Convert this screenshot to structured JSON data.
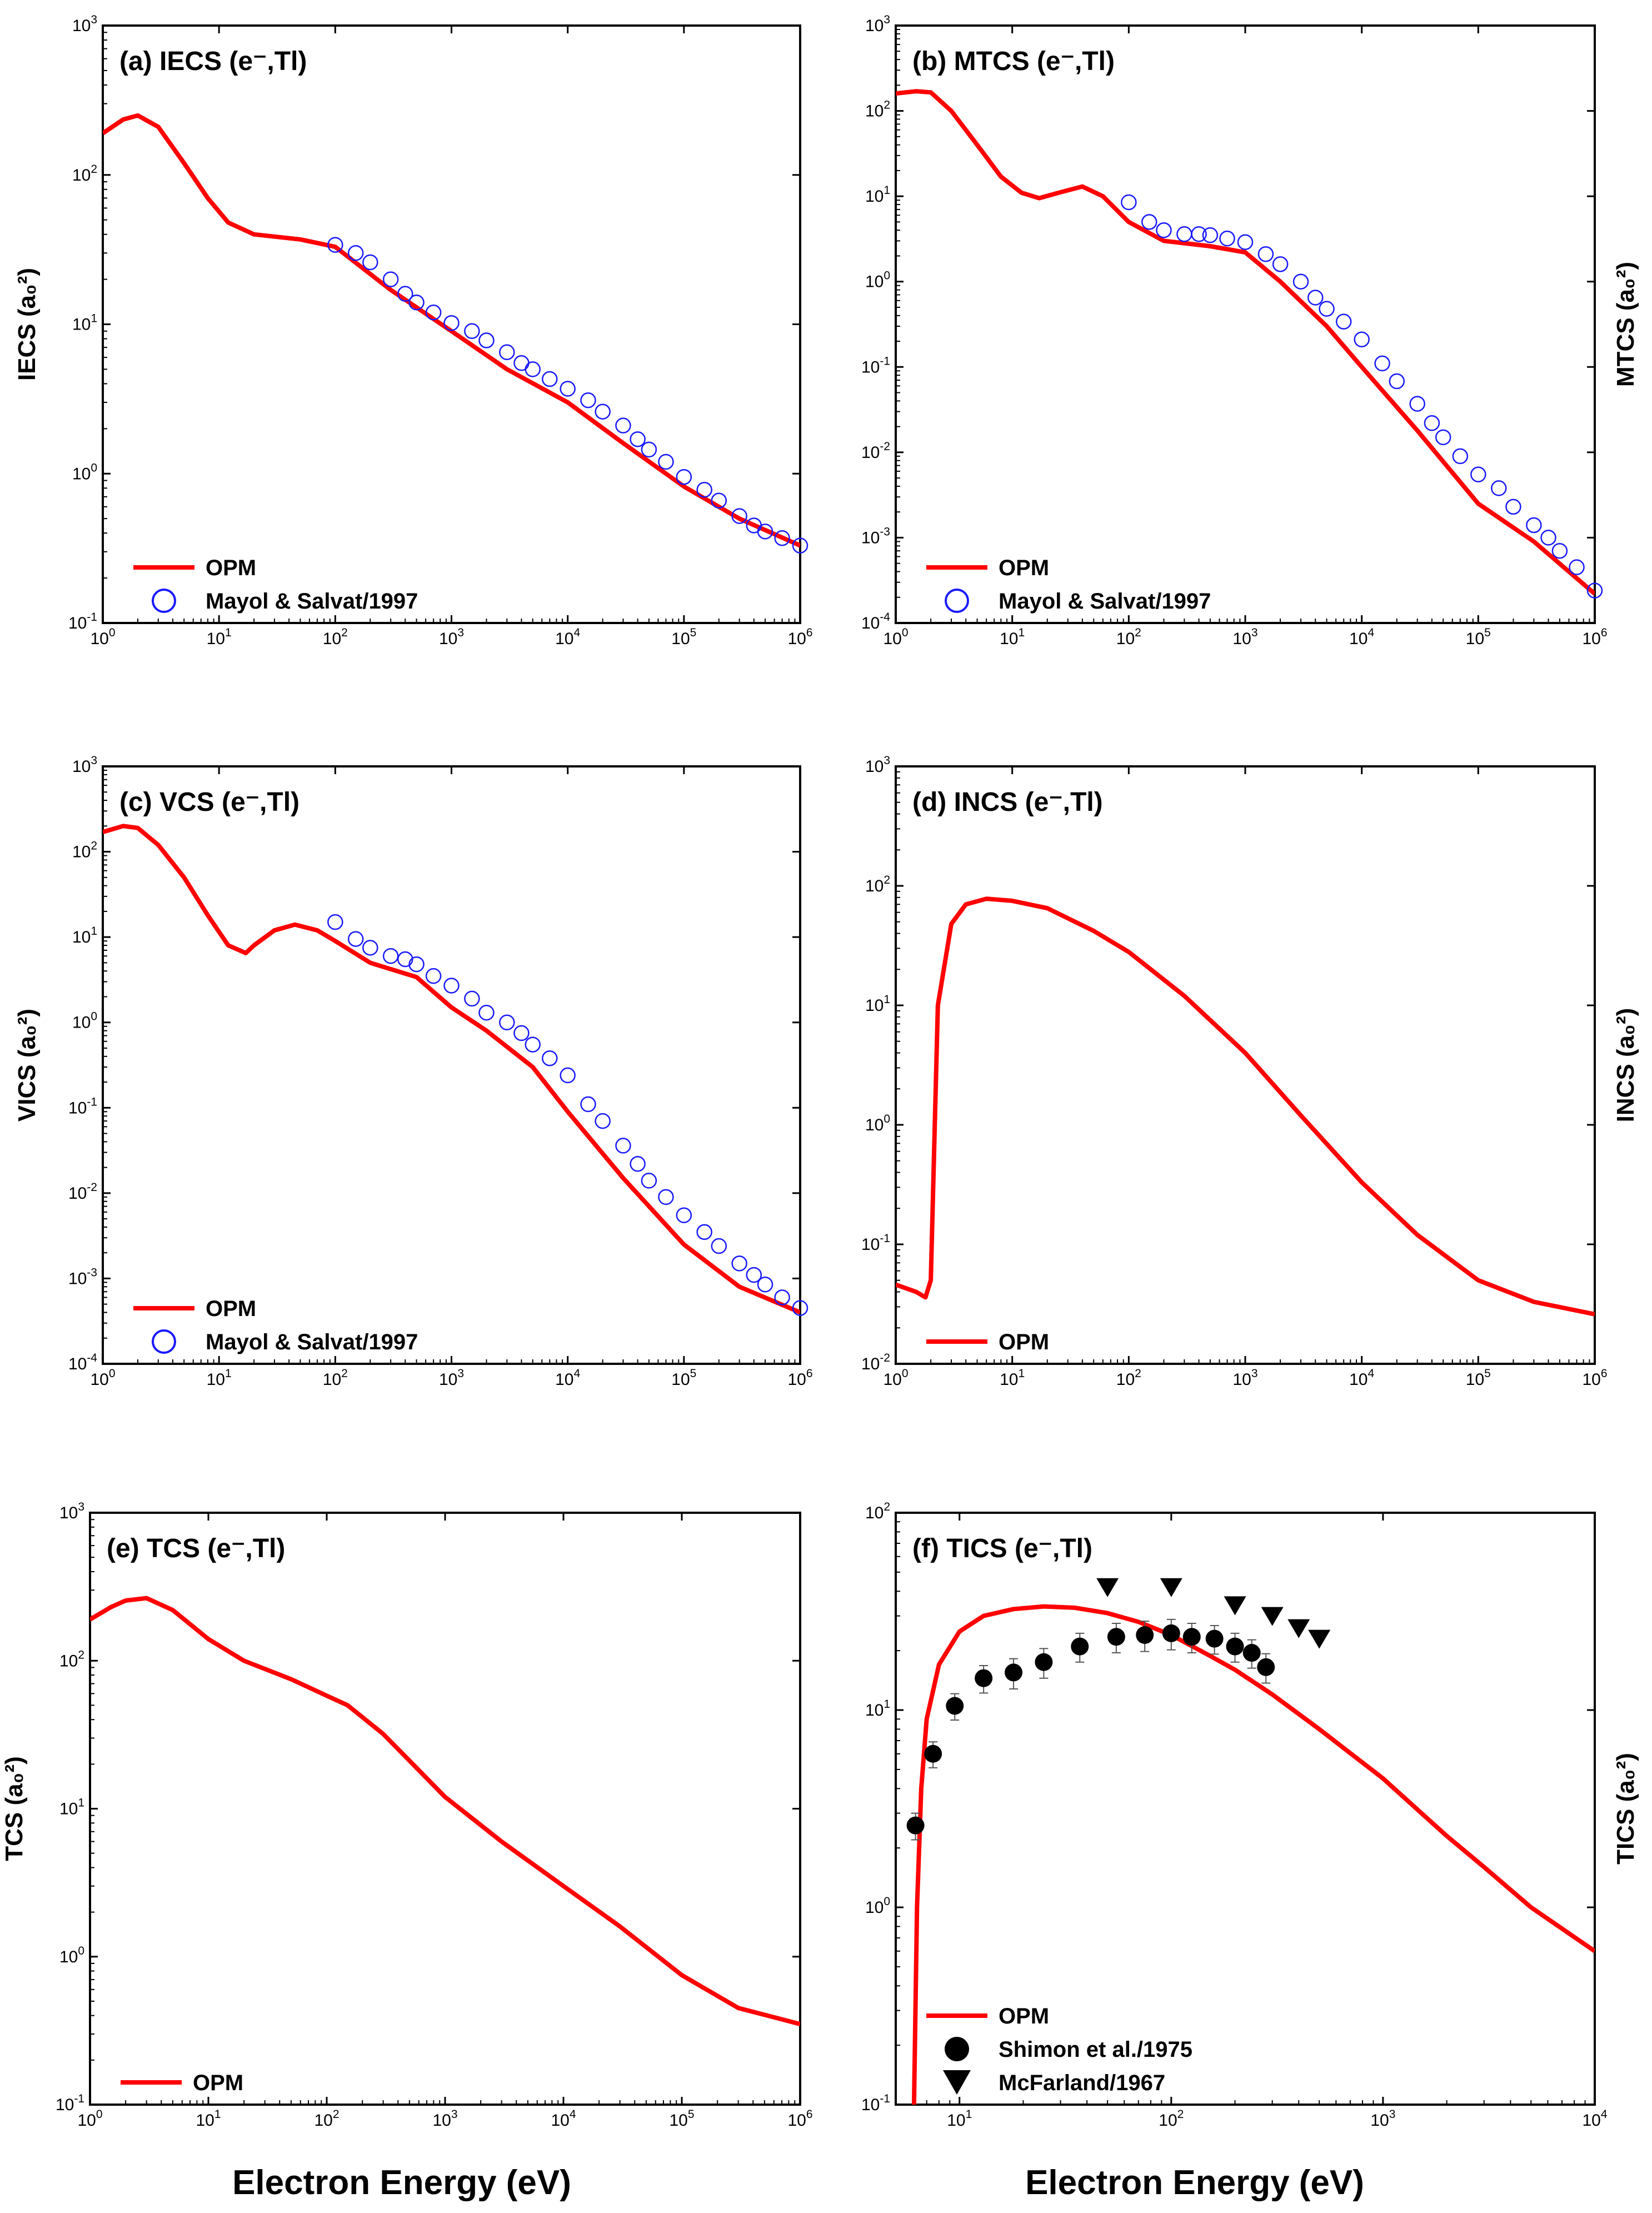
{
  "figure": {
    "x_axis_label": "Electron Energy (eV)"
  },
  "colors": {
    "opm": "#ff0000",
    "mayol": "#1a1aff",
    "experiment": "#000000"
  },
  "chart_data": [
    {
      "id": "a",
      "type": "line",
      "title": "(a) IECS (e⁻,Tl)",
      "ylabel": "IECS (a₀²)",
      "ylabel_side": "left",
      "xscale": "log",
      "yscale": "log",
      "xlim": [
        1,
        1000000
      ],
      "ylim": [
        0.1,
        1000
      ],
      "legend_position": "bottom-left",
      "series": [
        {
          "name": "OPM",
          "kind": "line",
          "color": "#ff0000",
          "x": [
            1,
            1.5,
            2,
            3,
            5,
            8,
            12,
            20,
            50,
            100,
            300,
            1000,
            3000,
            10000,
            30000,
            100000,
            300000,
            1000000
          ],
          "y": [
            190,
            235,
            250,
            210,
            120,
            70,
            48,
            40,
            37,
            33,
            17,
            9,
            5,
            3,
            1.6,
            0.82,
            0.5,
            0.33
          ]
        },
        {
          "name": "Mayol & Salvat/1997",
          "kind": "open-circle",
          "color": "#1a1aff",
          "x": [
            100,
            150,
            200,
            300,
            400,
            500,
            700,
            1000,
            1500,
            2000,
            3000,
            4000,
            5000,
            7000,
            10000,
            15000,
            20000,
            30000,
            40000,
            50000,
            70000,
            100000,
            150000,
            200000,
            300000,
            400000,
            500000,
            700000,
            1000000
          ],
          "y": [
            34,
            30,
            26,
            20,
            16,
            14,
            12,
            10.2,
            9,
            7.8,
            6.5,
            5.5,
            5,
            4.3,
            3.7,
            3.1,
            2.6,
            2.1,
            1.7,
            1.45,
            1.2,
            0.95,
            0.78,
            0.66,
            0.52,
            0.45,
            0.41,
            0.37,
            0.33
          ]
        }
      ]
    },
    {
      "id": "b",
      "type": "line",
      "title": "(b) MTCS (e⁻,Tl)",
      "ylabel": "MTCS (a₀²)",
      "ylabel_side": "right",
      "xscale": "log",
      "yscale": "log",
      "xlim": [
        1,
        1000000
      ],
      "ylim": [
        0.0001,
        1000
      ],
      "legend_position": "bottom-left",
      "series": [
        {
          "name": "OPM",
          "kind": "line",
          "color": "#ff0000",
          "x": [
            1,
            1.5,
            2,
            3,
            5,
            8,
            12,
            17,
            25,
            40,
            60,
            100,
            200,
            500,
            1000,
            2000,
            5000,
            10000,
            30000,
            100000,
            300000,
            1000000
          ],
          "y": [
            160,
            170,
            165,
            100,
            40,
            17,
            11,
            9.5,
            11,
            13,
            10,
            5,
            3,
            2.6,
            2.2,
            1,
            0.3,
            0.1,
            0.018,
            0.0025,
            0.0009,
            0.00022
          ]
        },
        {
          "name": "Mayol & Salvat/1997",
          "kind": "open-circle",
          "color": "#1a1aff",
          "x": [
            100,
            150,
            200,
            300,
            400,
            500,
            700,
            1000,
            1500,
            2000,
            3000,
            4000,
            5000,
            7000,
            10000,
            15000,
            20000,
            30000,
            40000,
            50000,
            70000,
            100000,
            150000,
            200000,
            300000,
            400000,
            500000,
            700000,
            1000000
          ],
          "y": [
            8.5,
            5,
            4,
            3.6,
            3.6,
            3.5,
            3.2,
            2.9,
            2.1,
            1.6,
            1,
            0.65,
            0.48,
            0.34,
            0.21,
            0.11,
            0.068,
            0.037,
            0.022,
            0.015,
            0.009,
            0.0055,
            0.0038,
            0.0023,
            0.0014,
            0.001,
            0.0007,
            0.00045,
            0.00024
          ]
        }
      ]
    },
    {
      "id": "c",
      "type": "line",
      "title": "(c) VCS (e⁻,Tl)",
      "ylabel": "VICS (a₀²)",
      "ylabel_side": "left",
      "xscale": "log",
      "yscale": "log",
      "xlim": [
        1,
        1000000
      ],
      "ylim": [
        0.0001,
        1000
      ],
      "legend_position": "bottom-left",
      "series": [
        {
          "name": "OPM",
          "kind": "line",
          "color": "#ff0000",
          "x": [
            1,
            1.5,
            2,
            3,
            5,
            8,
            12,
            17,
            20,
            30,
            45,
            70,
            100,
            200,
            500,
            1000,
            2000,
            5000,
            10000,
            30000,
            100000,
            300000,
            1000000
          ],
          "y": [
            170,
            200,
            190,
            120,
            50,
            18,
            8,
            6.5,
            8,
            12,
            14,
            12,
            9,
            5,
            3.4,
            1.5,
            0.8,
            0.3,
            0.09,
            0.015,
            0.0025,
            0.0008,
            0.0004
          ]
        },
        {
          "name": "Mayol & Salvat/1997",
          "kind": "open-circle",
          "color": "#1a1aff",
          "x": [
            100,
            150,
            200,
            300,
            400,
            500,
            700,
            1000,
            1500,
            2000,
            3000,
            4000,
            5000,
            7000,
            10000,
            15000,
            20000,
            30000,
            40000,
            50000,
            70000,
            100000,
            150000,
            200000,
            300000,
            400000,
            500000,
            700000,
            1000000
          ],
          "y": [
            15,
            9.5,
            7.5,
            6,
            5.5,
            4.8,
            3.5,
            2.7,
            1.9,
            1.3,
            1,
            0.75,
            0.55,
            0.38,
            0.24,
            0.11,
            0.07,
            0.036,
            0.022,
            0.014,
            0.009,
            0.0055,
            0.0035,
            0.0024,
            0.0015,
            0.0011,
            0.00085,
            0.0006,
            0.00045
          ]
        }
      ]
    },
    {
      "id": "d",
      "type": "line",
      "title": "(d) INCS (e⁻,Tl)",
      "ylabel": "INCS (a₀²)",
      "ylabel_side": "right",
      "xscale": "log",
      "yscale": "log",
      "xlim": [
        1,
        1000000
      ],
      "ylim": [
        0.01,
        1000
      ],
      "legend_position": "bottom-left",
      "series": [
        {
          "name": "OPM",
          "kind": "line",
          "color": "#ff0000",
          "x": [
            1,
            1.5,
            1.8,
            2,
            2.3,
            3,
            4,
            6,
            10,
            20,
            50,
            100,
            300,
            1000,
            3000,
            10000,
            30000,
            100000,
            300000,
            1000000
          ],
          "y": [
            0.046,
            0.04,
            0.036,
            0.05,
            10,
            48,
            70,
            78,
            75,
            65,
            42,
            28,
            12,
            4,
            1.2,
            0.33,
            0.12,
            0.05,
            0.033,
            0.026
          ]
        }
      ]
    },
    {
      "id": "e",
      "type": "line",
      "title": "(e) TCS (e⁻,Tl)",
      "ylabel": "TCS (a₀²)",
      "ylabel_side": "left",
      "xscale": "log",
      "yscale": "log",
      "xlim": [
        1,
        1000000
      ],
      "ylim": [
        0.1,
        1000
      ],
      "legend_position": "bottom-left",
      "series": [
        {
          "name": "OPM",
          "kind": "line",
          "color": "#ff0000",
          "x": [
            1,
            1.5,
            2,
            3,
            5,
            10,
            20,
            50,
            100,
            150,
            300,
            1000,
            3000,
            10000,
            30000,
            100000,
            300000,
            1000000
          ],
          "y": [
            190,
            230,
            255,
            265,
            220,
            140,
            100,
            75,
            58,
            50,
            32,
            12,
            6,
            3,
            1.6,
            0.75,
            0.45,
            0.35
          ]
        }
      ]
    },
    {
      "id": "f",
      "type": "line",
      "title": "(f) TICS (e⁻,Tl)",
      "ylabel": "TICS (a₀²)",
      "ylabel_side": "right",
      "xscale": "log",
      "yscale": "log",
      "xlim": [
        5,
        10000
      ],
      "ylim": [
        0.1,
        100
      ],
      "legend_position": "bottom-left",
      "series": [
        {
          "name": "OPM",
          "kind": "line",
          "color": "#ff0000",
          "x": [
            6.1,
            6.3,
            6.6,
            7,
            8,
            10,
            13,
            18,
            25,
            35,
            50,
            70,
            100,
            150,
            200,
            300,
            500,
            1000,
            2000,
            3000,
            5000,
            10000
          ],
          "y": [
            0.1,
            1,
            4,
            9,
            17,
            25,
            30,
            32.5,
            33.5,
            33,
            31,
            28,
            24,
            19,
            16,
            12,
            8,
            4.5,
            2.3,
            1.6,
            1,
            0.6
          ]
        },
        {
          "name": "Shimon et al./1975",
          "kind": "filled-circle",
          "color": "#000000",
          "x": [
            6.2,
            7.5,
            9.5,
            13,
            18,
            25,
            37,
            55,
            75,
            100,
            125,
            160,
            200,
            240,
            280
          ],
          "y": [
            2.6,
            6,
            10.5,
            14.5,
            15.5,
            17.5,
            21,
            23.5,
            24,
            24.5,
            23.5,
            23,
            21,
            19.5,
            16.5
          ],
          "yerr": [
            0.4,
            0.9,
            1.6,
            2.3,
            2.7,
            3,
            3.5,
            4,
            4.2,
            4.3,
            4,
            3.8,
            3.5,
            3.2,
            2.8
          ]
        },
        {
          "name": "McFarland/1967",
          "kind": "filled-triangle-down",
          "color": "#000000",
          "x": [
            50,
            100,
            200,
            300,
            400,
            500
          ],
          "y": [
            42,
            42,
            34,
            30,
            26,
            23
          ]
        }
      ]
    }
  ]
}
